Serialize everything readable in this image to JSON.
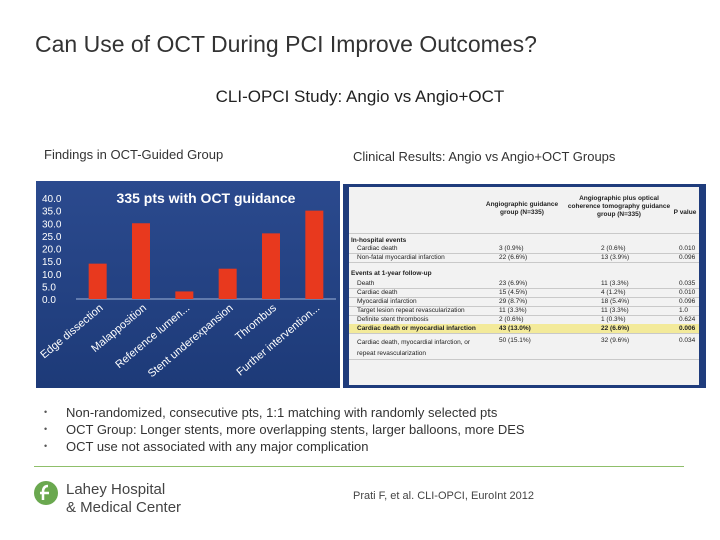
{
  "slide": {
    "title": "Can Use of OCT During PCI Improve Outcomes?",
    "subtitle": "CLI-OPCI Study: Angio vs Angio+OCT",
    "left_label": "Findings in OCT-Guided Group",
    "right_label": "Clinical Results: Angio vs Angio+OCT Groups"
  },
  "chart_data": {
    "type": "bar",
    "title": "335 pts with OCT guidance",
    "categories": [
      "Edge dissection",
      "Malapposition",
      "Reference lumen...",
      "Stent underexpansion",
      "Thrombus",
      "Further intervention..."
    ],
    "values": [
      14,
      30,
      3,
      12,
      26,
      35
    ],
    "yticks": [
      "40.0",
      "35.0",
      "30.0",
      "25.0",
      "20.0",
      "15.0",
      "10.0",
      "5.0",
      "0.0"
    ],
    "ylim": [
      0,
      40
    ],
    "bar_color": "#e8391e"
  },
  "table": {
    "headers": {
      "col1": "Angiographic guidance group (N=335)",
      "col2": "Angiographic plus optical coherence tomography guidance group (N=335)",
      "col3": "P value"
    },
    "sections": {
      "inhospital": "In-hospital events",
      "oneyear": "Events at 1-year follow-up"
    },
    "rows": [
      {
        "label": "Cardiac death",
        "a": "3 (0.9%)",
        "b": "2 (0.6%)",
        "p": "0.010"
      },
      {
        "label": "Non-fatal myocardial infarction",
        "a": "22 (6.6%)",
        "b": "13 (3.9%)",
        "p": "0.096"
      },
      {
        "label": "Death",
        "a": "23 (6.9%)",
        "b": "11 (3.3%)",
        "p": "0.035"
      },
      {
        "label": "Cardiac death",
        "a": "15 (4.5%)",
        "b": "4 (1.2%)",
        "p": "0.010"
      },
      {
        "label": "Myocardial infarction",
        "a": "29 (8.7%)",
        "b": "18 (5.4%)",
        "p": "0.096"
      },
      {
        "label": "Target lesion repeat revascularization",
        "a": "11 (3.3%)",
        "b": "11 (3.3%)",
        "p": "1.0"
      },
      {
        "label": "Definite stent thrombosis",
        "a": "2 (0.6%)",
        "b": "1 (0.3%)",
        "p": "0.624"
      },
      {
        "label": "Cardiac death or myocardial infarction",
        "a": "43 (13.0%)",
        "b": "22 (6.6%)",
        "p": "0.006"
      },
      {
        "label": "Cardiac death, myocardial infarction, or repeat revascularization",
        "a": "50 (15.1%)",
        "b": "32 (9.6%)",
        "p": "0.034"
      }
    ]
  },
  "bullets": [
    "Non-randomized, consecutive pts, 1:1 matching with randomly selected pts",
    "OCT Group: Longer stents, more overlapping stents, larger balloons, more DES",
    "OCT use not associated with any major complication"
  ],
  "bullet_marker": "•",
  "footer": {
    "logo_line1": "Lahey Hospital",
    "logo_line2": "& Medical Center",
    "citation": "Prati F, et al. CLI-OPCI, EuroInt 2012"
  },
  "colors": {
    "logo_green": "#6aa84f",
    "divider_green": "#8fbf6a",
    "panel_blue": "#1f3c7c"
  }
}
